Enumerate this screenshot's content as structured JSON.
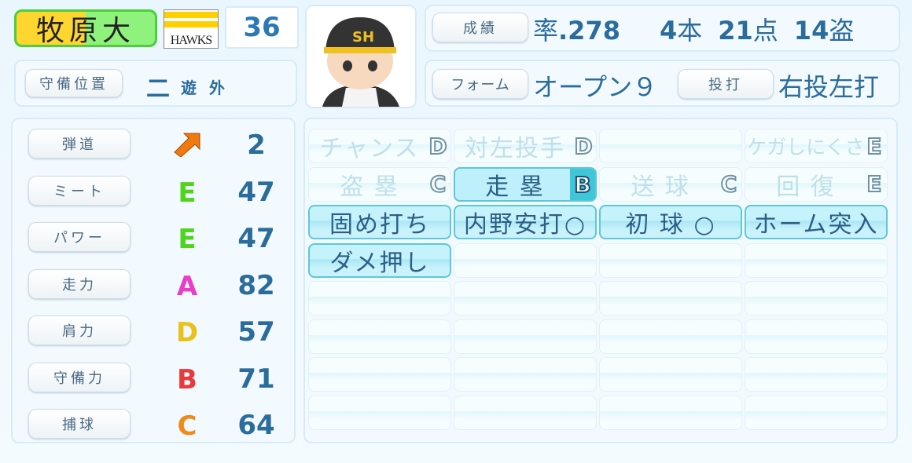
{
  "player": {
    "name": "牧原大",
    "team": "HAWKS",
    "number": "36"
  },
  "position": {
    "label": "守備位置",
    "main": "二",
    "sub": [
      "遊",
      "外"
    ]
  },
  "record": {
    "label": "成績",
    "avg_prefix": "率",
    "avg": ".278",
    "hr": "4",
    "hr_unit": "本",
    "rbi": "21",
    "rbi_unit": "点",
    "sb": "14",
    "sb_unit": "盗"
  },
  "form": {
    "label": "フォーム",
    "value": "オープン９",
    "hand_label": "投打",
    "hand": "右投左打"
  },
  "stats": [
    {
      "label": "弾道",
      "grade": "",
      "value": "2",
      "icon": "trajectory-arrow-icon"
    },
    {
      "label": "ミート",
      "grade": "E",
      "value": "47",
      "color": "#4ed41c"
    },
    {
      "label": "パワー",
      "grade": "E",
      "value": "47",
      "color": "#4ed41c"
    },
    {
      "label": "走力",
      "grade": "A",
      "value": "82",
      "color": "#e83ec8"
    },
    {
      "label": "肩力",
      "grade": "D",
      "value": "57",
      "color": "#e8c21a"
    },
    {
      "label": "守備力",
      "grade": "B",
      "value": "71",
      "color": "#e83a3a"
    },
    {
      "label": "捕球",
      "grade": "C",
      "value": "64",
      "color": "#f08a1a"
    }
  ],
  "abilities": [
    {
      "label": "チャンス",
      "grade": "D",
      "active": false
    },
    {
      "label": "対左投手",
      "grade": "D",
      "active": false
    },
    {
      "label": "",
      "grade": "",
      "active": false
    },
    {
      "label": "ケガしにくさ",
      "grade": "E",
      "active": false
    },
    {
      "label": "盗 塁",
      "grade": "C",
      "active": false
    },
    {
      "label": "走 塁",
      "grade": "B",
      "active": true
    },
    {
      "label": "送 球",
      "grade": "C",
      "active": false
    },
    {
      "label": "回 復",
      "grade": "E",
      "active": false
    },
    {
      "label": "固め打ち",
      "active": true
    },
    {
      "label": "内野安打○",
      "active": true
    },
    {
      "label": "初 球 ○",
      "active": true
    },
    {
      "label": "ホーム突入",
      "active": true
    },
    {
      "label": "ダメ押し",
      "active": true
    }
  ]
}
